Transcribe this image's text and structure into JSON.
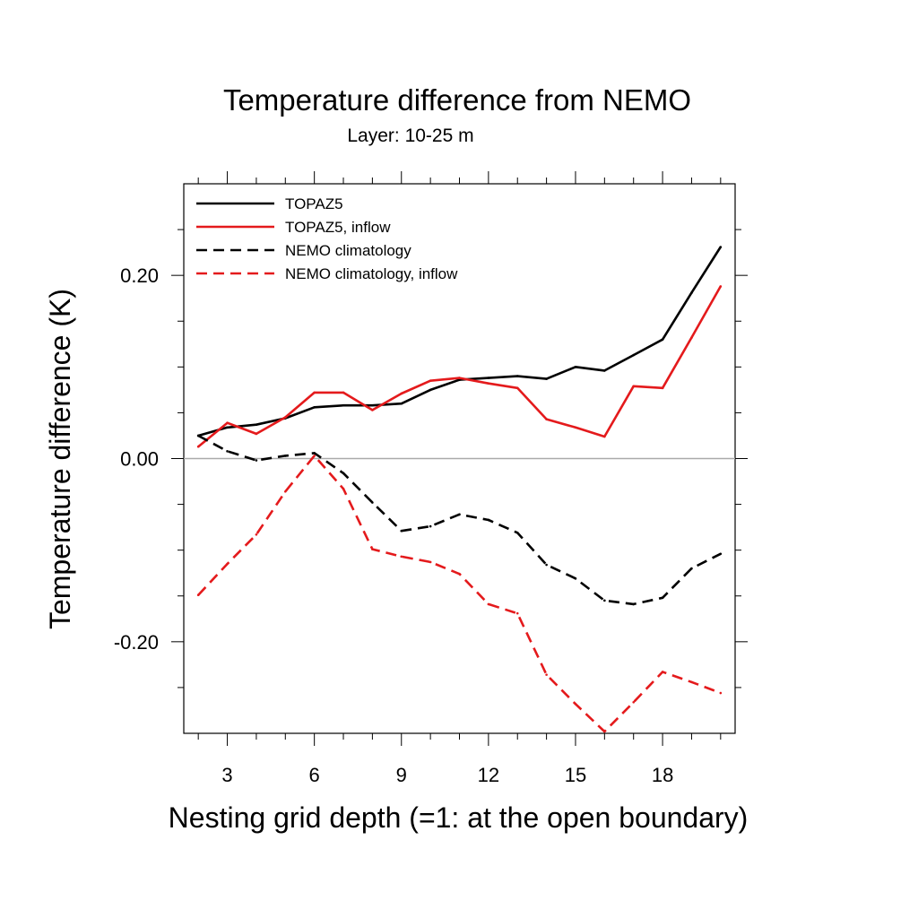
{
  "chart_data": {
    "type": "line",
    "title": "Temperature difference from NEMO",
    "subtitle": "Layer: 10-25 m",
    "xlabel": "Nesting grid depth (=1: at the open boundary)",
    "ylabel": "Temperature difference (K)",
    "xlim": [
      1.5,
      20.5
    ],
    "ylim": [
      -0.3,
      0.3
    ],
    "x_ticks": [
      3,
      6,
      9,
      12,
      15,
      18
    ],
    "x_tick_labels": [
      "3",
      "6",
      "9",
      "12",
      "15",
      "18"
    ],
    "y_ticks": [
      -0.2,
      0.0,
      0.2
    ],
    "y_tick_labels": [
      "-0.20",
      "0.00",
      "0.20"
    ],
    "reference_line_y": 0.0,
    "legend_position": "top-left",
    "grid": false,
    "x": [
      2,
      3,
      4,
      5,
      6,
      7,
      8,
      9,
      10,
      11,
      12,
      13,
      14,
      15,
      16,
      17,
      18,
      19,
      20
    ],
    "series": [
      {
        "name": "TOPAZ5",
        "color": "#000000",
        "dash": "solid",
        "values": [
          0.025,
          0.034,
          0.037,
          0.044,
          0.056,
          0.058,
          0.058,
          0.06,
          0.075,
          0.086,
          0.088,
          0.09,
          0.087,
          0.1,
          0.096,
          0.113,
          0.13,
          0.181,
          0.231
        ]
      },
      {
        "name": "TOPAZ5, inflow",
        "color": "#e41a1c",
        "dash": "solid",
        "values": [
          0.013,
          0.039,
          0.027,
          0.045,
          0.072,
          0.072,
          0.053,
          0.071,
          0.085,
          0.088,
          0.082,
          0.077,
          0.043,
          0.034,
          0.024,
          0.079,
          0.077,
          0.132,
          0.188
        ]
      },
      {
        "name": "NEMO climatology",
        "color": "#000000",
        "dash": "dashed",
        "values": [
          0.025,
          0.008,
          -0.002,
          0.003,
          0.006,
          -0.016,
          -0.048,
          -0.079,
          -0.074,
          -0.061,
          -0.067,
          -0.081,
          -0.116,
          -0.131,
          -0.155,
          -0.159,
          -0.152,
          -0.12,
          -0.104
        ]
      },
      {
        "name": "NEMO climatology, inflow",
        "color": "#e41a1c",
        "dash": "dashed",
        "values": [
          -0.149,
          -0.115,
          -0.083,
          -0.036,
          0.003,
          -0.033,
          -0.099,
          -0.107,
          -0.113,
          -0.126,
          -0.159,
          -0.169,
          -0.236,
          -0.268,
          -0.298,
          -0.266,
          -0.233,
          -0.244,
          -0.256
        ]
      }
    ]
  }
}
